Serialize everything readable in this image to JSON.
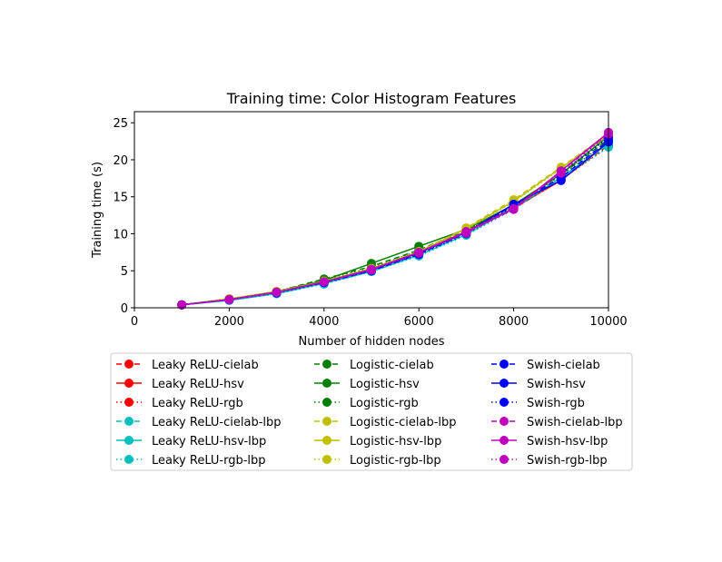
{
  "chart_data": {
    "type": "line",
    "title": "Training time: Color Histogram Features",
    "xlabel": "Number of hidden nodes",
    "ylabel": "Training time (s)",
    "xlim": [
      0,
      10000
    ],
    "ylim": [
      0,
      26.5
    ],
    "xticks": [
      0,
      2000,
      4000,
      6000,
      8000,
      10000
    ],
    "yticks": [
      0,
      5,
      10,
      15,
      20,
      25
    ],
    "grid": false,
    "legend_position": "below",
    "x": [
      1000,
      2000,
      3000,
      4000,
      5000,
      6000,
      7000,
      8000,
      9000,
      10000
    ],
    "series": [
      {
        "name": "Leaky ReLU-cielab",
        "color": "#ff0000",
        "linestyle": "dashed",
        "values": [
          0.4,
          1.1,
          2.1,
          3.5,
          5.1,
          7.4,
          10.2,
          13.4,
          17.3,
          22.0
        ]
      },
      {
        "name": "Leaky ReLU-hsv",
        "color": "#ff0000",
        "linestyle": "solid",
        "values": [
          0.4,
          1.1,
          2.1,
          3.5,
          5.2,
          7.5,
          10.3,
          13.5,
          17.2,
          22.3
        ]
      },
      {
        "name": "Leaky ReLU-rgb",
        "color": "#ff0000",
        "linestyle": "dotted",
        "values": [
          0.4,
          1.1,
          2.1,
          3.6,
          5.1,
          7.3,
          10.1,
          13.5,
          17.3,
          21.8
        ]
      },
      {
        "name": "Leaky ReLU-cielab-lbp",
        "color": "#00bfbf",
        "linestyle": "dashed",
        "values": [
          0.4,
          1.0,
          2.0,
          3.3,
          5.0,
          7.2,
          10.0,
          13.6,
          17.5,
          22.1
        ]
      },
      {
        "name": "Leaky ReLU-hsv-lbp",
        "color": "#00bfbf",
        "linestyle": "solid",
        "values": [
          0.4,
          1.0,
          1.9,
          3.3,
          4.9,
          7.1,
          9.9,
          13.5,
          17.6,
          22.2
        ]
      },
      {
        "name": "Leaky ReLU-rgb-lbp",
        "color": "#00bfbf",
        "linestyle": "dotted",
        "values": [
          0.4,
          1.0,
          1.9,
          3.2,
          4.9,
          7.0,
          9.8,
          13.3,
          17.4,
          21.7
        ]
      },
      {
        "name": "Logistic-cielab",
        "color": "#008000",
        "linestyle": "dashed",
        "values": [
          0.4,
          1.2,
          2.2,
          3.9,
          5.6,
          7.8,
          10.5,
          13.8,
          18.0,
          22.8
        ]
      },
      {
        "name": "Logistic-hsv",
        "color": "#008000",
        "linestyle": "solid",
        "values": [
          0.4,
          1.2,
          2.2,
          3.7,
          6.0,
          8.3,
          10.6,
          13.9,
          18.1,
          23.2
        ]
      },
      {
        "name": "Logistic-rgb",
        "color": "#008000",
        "linestyle": "dotted",
        "values": [
          0.4,
          1.2,
          2.2,
          3.8,
          5.4,
          7.7,
          10.4,
          13.7,
          17.9,
          22.5
        ]
      },
      {
        "name": "Logistic-cielab-lbp",
        "color": "#bfbf00",
        "linestyle": "dashed",
        "values": [
          0.4,
          1.2,
          2.2,
          3.6,
          5.3,
          7.6,
          10.8,
          14.6,
          19.0,
          23.5
        ]
      },
      {
        "name": "Logistic-hsv-lbp",
        "color": "#bfbf00",
        "linestyle": "solid",
        "values": [
          0.4,
          1.2,
          2.2,
          3.6,
          5.3,
          7.6,
          10.7,
          14.4,
          18.9,
          23.3
        ]
      },
      {
        "name": "Logistic-rgb-lbp",
        "color": "#bfbf00",
        "linestyle": "dotted",
        "values": [
          0.4,
          1.2,
          2.2,
          3.5,
          5.2,
          7.5,
          10.6,
          14.3,
          18.8,
          23.4
        ]
      },
      {
        "name": "Swish-cielab",
        "color": "#0000ff",
        "linestyle": "dashed",
        "values": [
          0.4,
          1.1,
          2.1,
          3.4,
          5.0,
          7.3,
          10.1,
          13.9,
          17.6,
          22.6
        ]
      },
      {
        "name": "Swish-hsv",
        "color": "#0000ff",
        "linestyle": "solid",
        "values": [
          0.4,
          1.1,
          2.1,
          3.5,
          5.1,
          7.4,
          10.2,
          14.0,
          17.2,
          22.4
        ]
      },
      {
        "name": "Swish-rgb",
        "color": "#0000ff",
        "linestyle": "dotted",
        "values": [
          0.4,
          1.1,
          2.0,
          3.4,
          5.0,
          7.2,
          10.0,
          13.7,
          18.1,
          23.0
        ]
      },
      {
        "name": "Swish-cielab-lbp",
        "color": "#bf00bf",
        "linestyle": "dashed",
        "values": [
          0.4,
          1.1,
          2.1,
          3.5,
          5.2,
          7.5,
          10.2,
          13.3,
          18.4,
          23.6
        ]
      },
      {
        "name": "Swish-hsv-lbp",
        "color": "#bf00bf",
        "linestyle": "solid",
        "values": [
          0.4,
          1.1,
          2.1,
          3.5,
          5.2,
          7.5,
          10.3,
          13.4,
          18.5,
          23.7
        ]
      },
      {
        "name": "Swish-rgb-lbp",
        "color": "#bf00bf",
        "linestyle": "dotted",
        "values": [
          0.4,
          1.1,
          2.1,
          3.5,
          5.1,
          7.4,
          10.1,
          13.3,
          18.2,
          23.5
        ]
      }
    ]
  }
}
